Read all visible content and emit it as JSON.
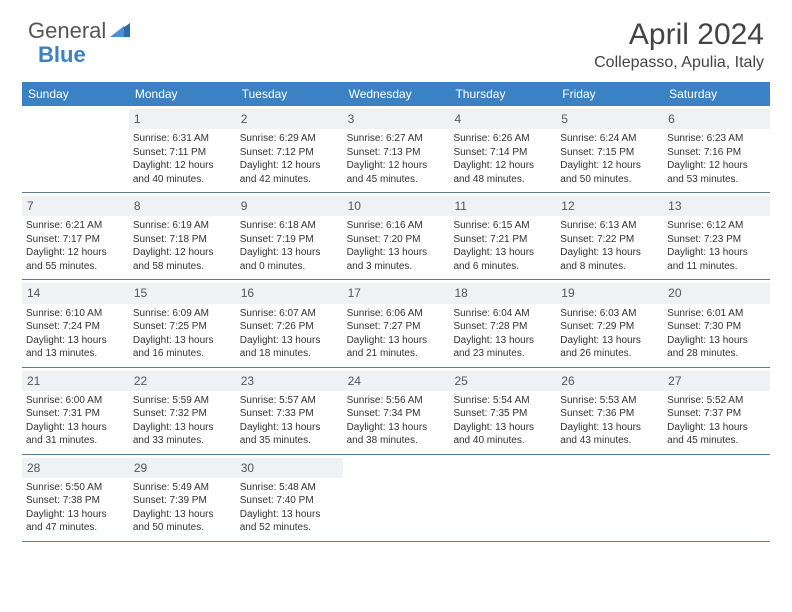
{
  "logo": {
    "text_general": "General",
    "text_blue": "Blue"
  },
  "title": "April 2024",
  "location": "Collepasso, Apulia, Italy",
  "colors": {
    "header_bg": "#3b82c4",
    "header_text": "#ffffff",
    "daynum_bg": "#eef2f5",
    "border": "#5a7a9a",
    "text": "#333333"
  },
  "day_names": [
    "Sunday",
    "Monday",
    "Tuesday",
    "Wednesday",
    "Thursday",
    "Friday",
    "Saturday"
  ],
  "weeks": [
    [
      null,
      {
        "n": "1",
        "sr": "Sunrise: 6:31 AM",
        "ss": "Sunset: 7:11 PM",
        "d1": "Daylight: 12 hours",
        "d2": "and 40 minutes."
      },
      {
        "n": "2",
        "sr": "Sunrise: 6:29 AM",
        "ss": "Sunset: 7:12 PM",
        "d1": "Daylight: 12 hours",
        "d2": "and 42 minutes."
      },
      {
        "n": "3",
        "sr": "Sunrise: 6:27 AM",
        "ss": "Sunset: 7:13 PM",
        "d1": "Daylight: 12 hours",
        "d2": "and 45 minutes."
      },
      {
        "n": "4",
        "sr": "Sunrise: 6:26 AM",
        "ss": "Sunset: 7:14 PM",
        "d1": "Daylight: 12 hours",
        "d2": "and 48 minutes."
      },
      {
        "n": "5",
        "sr": "Sunrise: 6:24 AM",
        "ss": "Sunset: 7:15 PM",
        "d1": "Daylight: 12 hours",
        "d2": "and 50 minutes."
      },
      {
        "n": "6",
        "sr": "Sunrise: 6:23 AM",
        "ss": "Sunset: 7:16 PM",
        "d1": "Daylight: 12 hours",
        "d2": "and 53 minutes."
      }
    ],
    [
      {
        "n": "7",
        "sr": "Sunrise: 6:21 AM",
        "ss": "Sunset: 7:17 PM",
        "d1": "Daylight: 12 hours",
        "d2": "and 55 minutes."
      },
      {
        "n": "8",
        "sr": "Sunrise: 6:19 AM",
        "ss": "Sunset: 7:18 PM",
        "d1": "Daylight: 12 hours",
        "d2": "and 58 minutes."
      },
      {
        "n": "9",
        "sr": "Sunrise: 6:18 AM",
        "ss": "Sunset: 7:19 PM",
        "d1": "Daylight: 13 hours",
        "d2": "and 0 minutes."
      },
      {
        "n": "10",
        "sr": "Sunrise: 6:16 AM",
        "ss": "Sunset: 7:20 PM",
        "d1": "Daylight: 13 hours",
        "d2": "and 3 minutes."
      },
      {
        "n": "11",
        "sr": "Sunrise: 6:15 AM",
        "ss": "Sunset: 7:21 PM",
        "d1": "Daylight: 13 hours",
        "d2": "and 6 minutes."
      },
      {
        "n": "12",
        "sr": "Sunrise: 6:13 AM",
        "ss": "Sunset: 7:22 PM",
        "d1": "Daylight: 13 hours",
        "d2": "and 8 minutes."
      },
      {
        "n": "13",
        "sr": "Sunrise: 6:12 AM",
        "ss": "Sunset: 7:23 PM",
        "d1": "Daylight: 13 hours",
        "d2": "and 11 minutes."
      }
    ],
    [
      {
        "n": "14",
        "sr": "Sunrise: 6:10 AM",
        "ss": "Sunset: 7:24 PM",
        "d1": "Daylight: 13 hours",
        "d2": "and 13 minutes."
      },
      {
        "n": "15",
        "sr": "Sunrise: 6:09 AM",
        "ss": "Sunset: 7:25 PM",
        "d1": "Daylight: 13 hours",
        "d2": "and 16 minutes."
      },
      {
        "n": "16",
        "sr": "Sunrise: 6:07 AM",
        "ss": "Sunset: 7:26 PM",
        "d1": "Daylight: 13 hours",
        "d2": "and 18 minutes."
      },
      {
        "n": "17",
        "sr": "Sunrise: 6:06 AM",
        "ss": "Sunset: 7:27 PM",
        "d1": "Daylight: 13 hours",
        "d2": "and 21 minutes."
      },
      {
        "n": "18",
        "sr": "Sunrise: 6:04 AM",
        "ss": "Sunset: 7:28 PM",
        "d1": "Daylight: 13 hours",
        "d2": "and 23 minutes."
      },
      {
        "n": "19",
        "sr": "Sunrise: 6:03 AM",
        "ss": "Sunset: 7:29 PM",
        "d1": "Daylight: 13 hours",
        "d2": "and 26 minutes."
      },
      {
        "n": "20",
        "sr": "Sunrise: 6:01 AM",
        "ss": "Sunset: 7:30 PM",
        "d1": "Daylight: 13 hours",
        "d2": "and 28 minutes."
      }
    ],
    [
      {
        "n": "21",
        "sr": "Sunrise: 6:00 AM",
        "ss": "Sunset: 7:31 PM",
        "d1": "Daylight: 13 hours",
        "d2": "and 31 minutes."
      },
      {
        "n": "22",
        "sr": "Sunrise: 5:59 AM",
        "ss": "Sunset: 7:32 PM",
        "d1": "Daylight: 13 hours",
        "d2": "and 33 minutes."
      },
      {
        "n": "23",
        "sr": "Sunrise: 5:57 AM",
        "ss": "Sunset: 7:33 PM",
        "d1": "Daylight: 13 hours",
        "d2": "and 35 minutes."
      },
      {
        "n": "24",
        "sr": "Sunrise: 5:56 AM",
        "ss": "Sunset: 7:34 PM",
        "d1": "Daylight: 13 hours",
        "d2": "and 38 minutes."
      },
      {
        "n": "25",
        "sr": "Sunrise: 5:54 AM",
        "ss": "Sunset: 7:35 PM",
        "d1": "Daylight: 13 hours",
        "d2": "and 40 minutes."
      },
      {
        "n": "26",
        "sr": "Sunrise: 5:53 AM",
        "ss": "Sunset: 7:36 PM",
        "d1": "Daylight: 13 hours",
        "d2": "and 43 minutes."
      },
      {
        "n": "27",
        "sr": "Sunrise: 5:52 AM",
        "ss": "Sunset: 7:37 PM",
        "d1": "Daylight: 13 hours",
        "d2": "and 45 minutes."
      }
    ],
    [
      {
        "n": "28",
        "sr": "Sunrise: 5:50 AM",
        "ss": "Sunset: 7:38 PM",
        "d1": "Daylight: 13 hours",
        "d2": "and 47 minutes."
      },
      {
        "n": "29",
        "sr": "Sunrise: 5:49 AM",
        "ss": "Sunset: 7:39 PM",
        "d1": "Daylight: 13 hours",
        "d2": "and 50 minutes."
      },
      {
        "n": "30",
        "sr": "Sunrise: 5:48 AM",
        "ss": "Sunset: 7:40 PM",
        "d1": "Daylight: 13 hours",
        "d2": "and 52 minutes."
      },
      null,
      null,
      null,
      null
    ]
  ]
}
